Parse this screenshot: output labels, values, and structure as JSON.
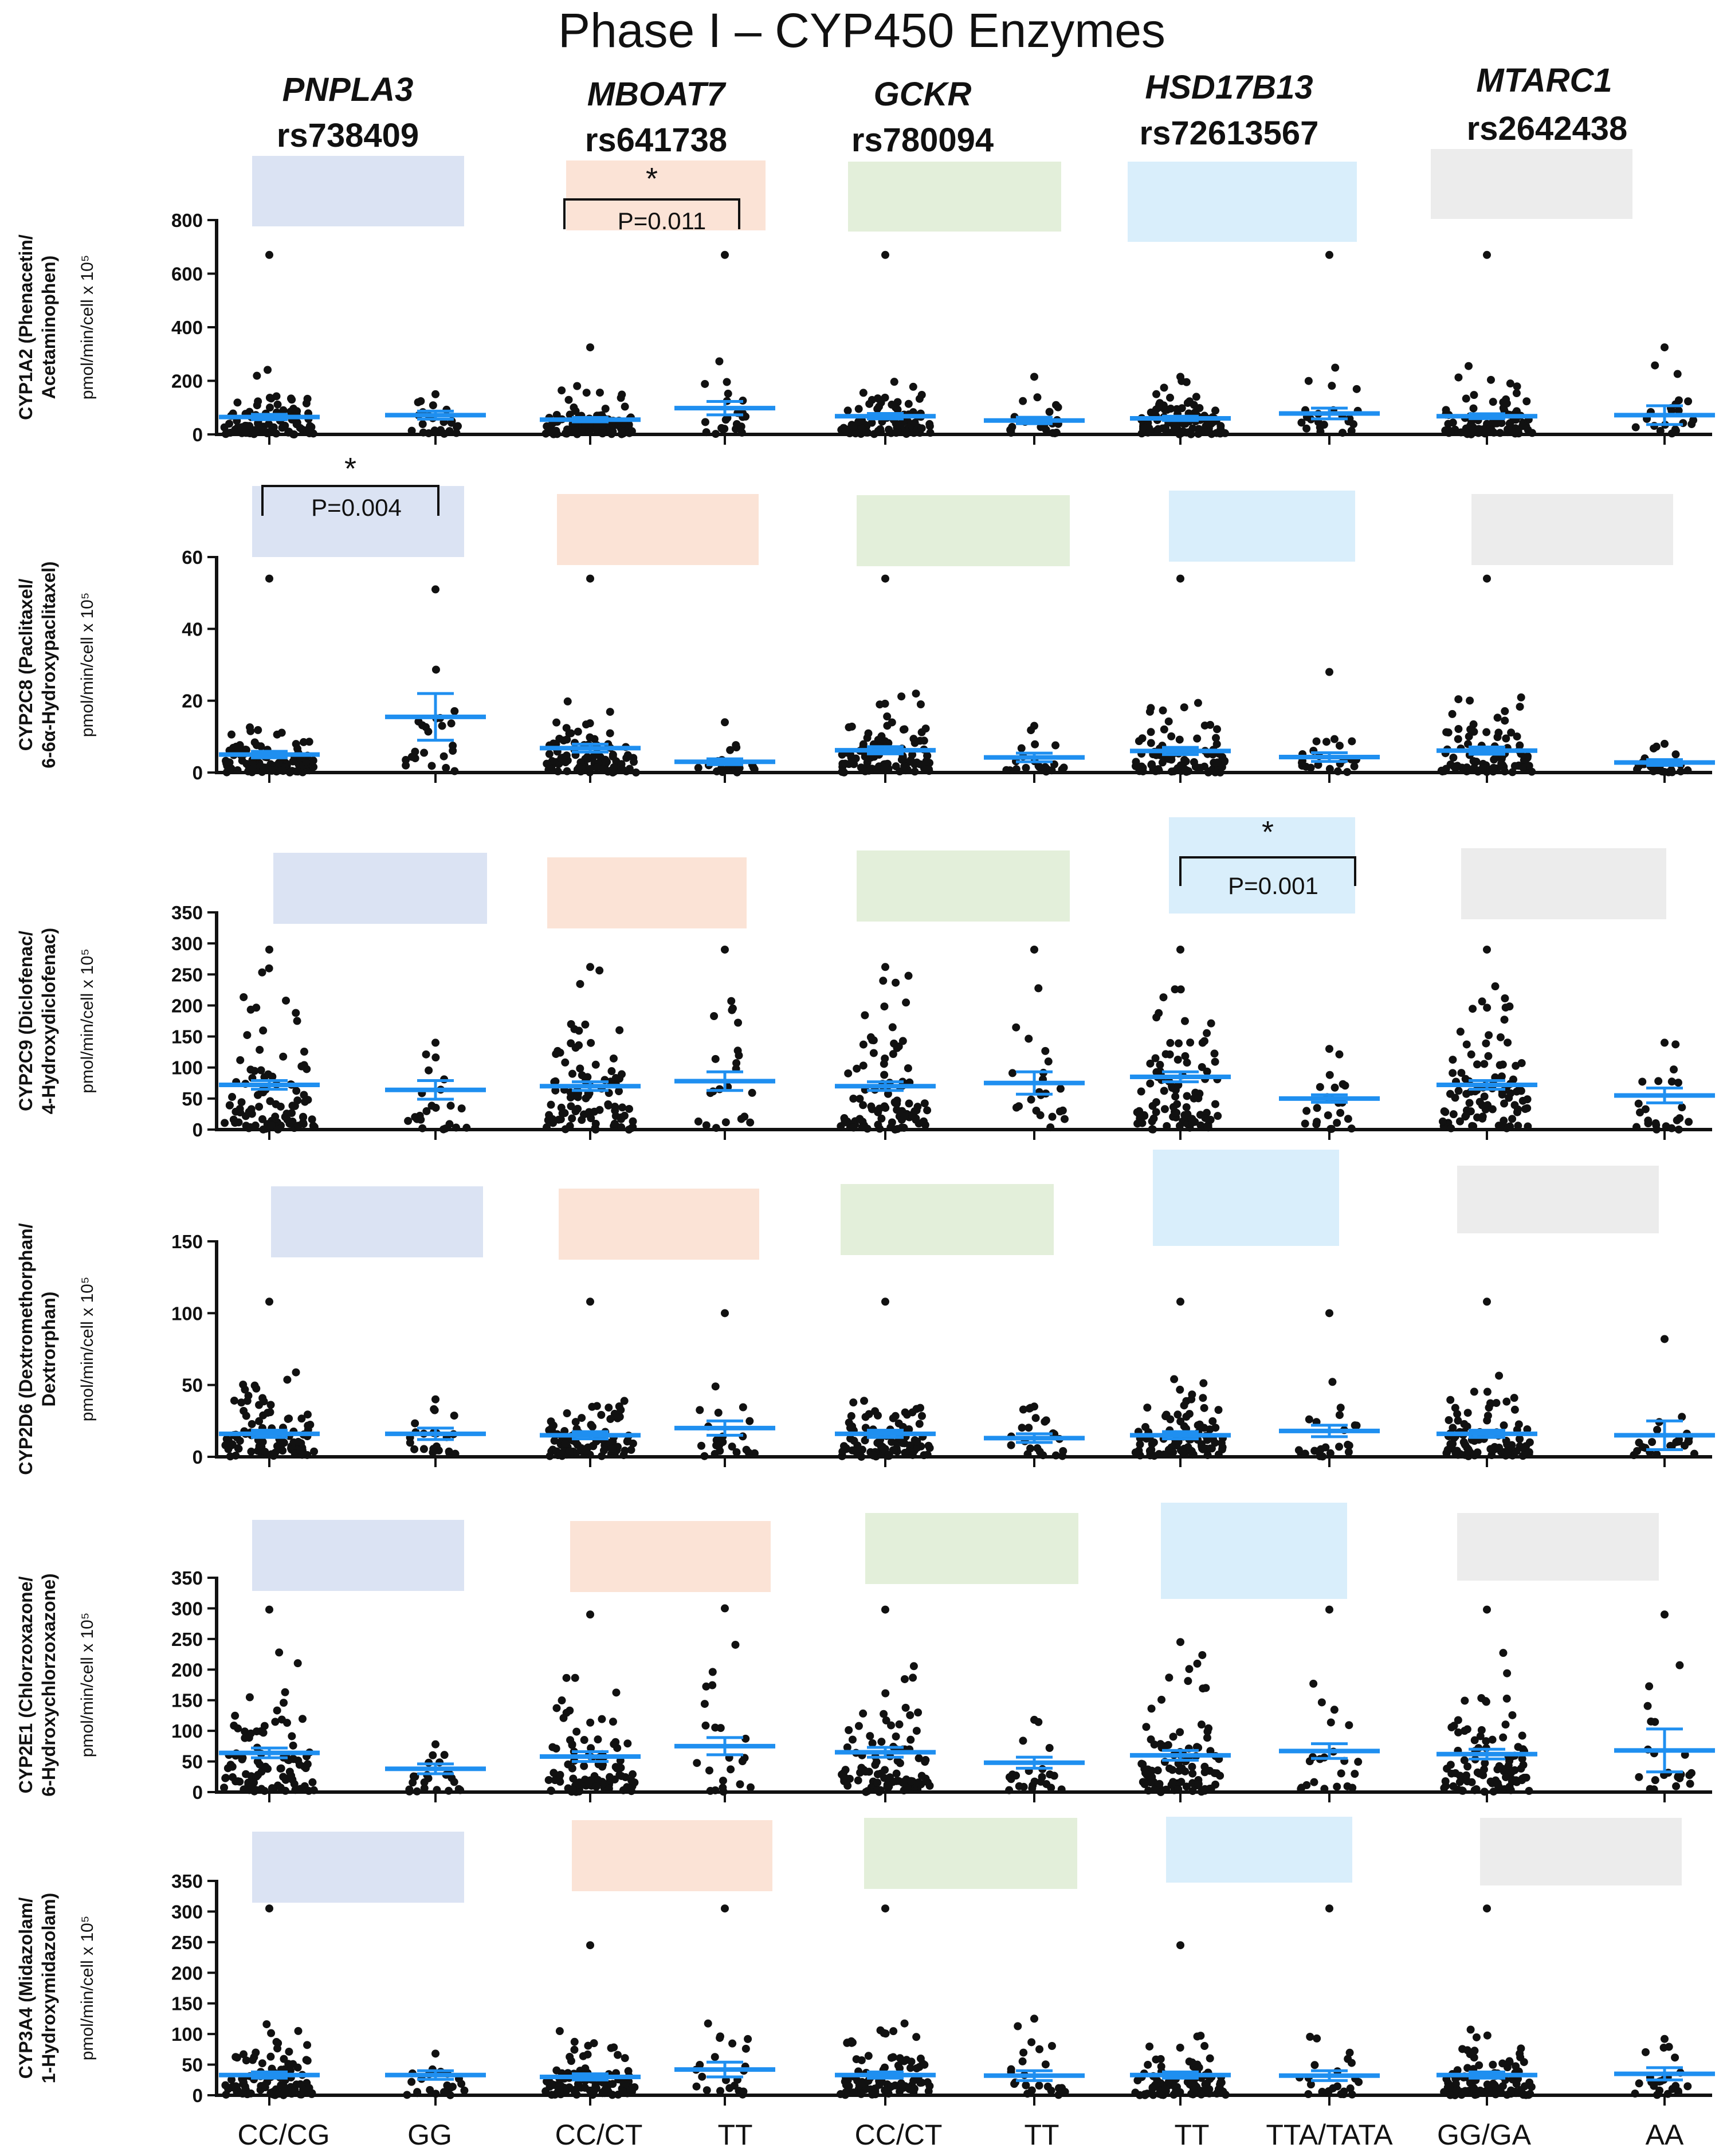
{
  "title": "Phase I – CYP450 Enzymes",
  "genes": [
    {
      "name": "PNPLA3",
      "snp": "rs738409",
      "color": "#dbe3f3"
    },
    {
      "name": "MBOAT7",
      "snp": "rs641738",
      "color": "#fbe3d6"
    },
    {
      "name": "GCKR",
      "snp": "rs780094",
      "color": "#e3efda"
    },
    {
      "name": "HSD17B13",
      "snp": "rs72613567",
      "color": "#d9eefb"
    },
    {
      "name": "MTARC1",
      "snp": "rs2642438",
      "color": "#ececec"
    }
  ],
  "x_categories": [
    "CC/CG",
    "GG",
    "CC/CT",
    "TT",
    "CC/CT",
    "TT",
    "TT",
    "TTA/TATA",
    "GG/GA",
    "AA"
  ],
  "unit_label": "pmol/min/cell x 10⁵",
  "mean_color": "#1f8ff0",
  "chart_data": [
    {
      "type": "scatter",
      "ylabel_lines": [
        "CYP1A2 (Phenacetin/",
        "Acetaminophen)"
      ],
      "ylim": [
        0,
        800
      ],
      "yticks": [
        0,
        200,
        400,
        600,
        800
      ],
      "groups": [
        {
          "max": 670,
          "mean": 65,
          "sem": 10
        },
        {
          "max": 150,
          "mean": 72,
          "sem": 15
        },
        {
          "max": 325,
          "mean": 55,
          "sem": 8
        },
        {
          "max": 670,
          "mean": 98,
          "sem": 25
        },
        {
          "max": 670,
          "mean": 68,
          "sem": 10
        },
        {
          "max": 215,
          "mean": 52,
          "sem": 12
        },
        {
          "max": 215,
          "mean": 60,
          "sem": 8
        },
        {
          "max": 670,
          "mean": 78,
          "sem": 20
        },
        {
          "max": 670,
          "mean": 68,
          "sem": 9
        },
        {
          "max": 325,
          "mean": 72,
          "sem": 35
        }
      ],
      "significance": {
        "from": 2,
        "to": 3,
        "p_label": "P=0.011",
        "star": "*"
      }
    },
    {
      "type": "scatter",
      "ylabel_lines": [
        "CYP2C8 (Paclitaxel/",
        "6-6α-Hydroxypaclitaxel)"
      ],
      "ylim": [
        0,
        60
      ],
      "yticks": [
        0,
        20,
        40,
        60
      ],
      "groups": [
        {
          "max": 54,
          "mean": 5,
          "sem": 0.9
        },
        {
          "max": 51,
          "mean": 15.5,
          "sem": 6.5
        },
        {
          "max": 54,
          "mean": 6.8,
          "sem": 1.1
        },
        {
          "max": 14,
          "mean": 3,
          "sem": 0.8
        },
        {
          "max": 54,
          "mean": 6.2,
          "sem": 1.0
        },
        {
          "max": 13,
          "mean": 4.2,
          "sem": 1.2
        },
        {
          "max": 54,
          "mean": 6.0,
          "sem": 1.0
        },
        {
          "max": 28,
          "mean": 4.3,
          "sem": 1.2
        },
        {
          "max": 54,
          "mean": 6.1,
          "sem": 1.0
        },
        {
          "max": 8,
          "mean": 2.8,
          "sem": 0.8
        }
      ],
      "significance": {
        "from": 0,
        "to": 1,
        "p_label": "P=0.004",
        "star": "*"
      }
    },
    {
      "type": "scatter",
      "ylabel_lines": [
        "CYP2C9 (Diclofenac/",
        "4-Hydroxydiclofenac)"
      ],
      "ylim": [
        0,
        350
      ],
      "yticks": [
        0,
        50,
        100,
        150,
        200,
        250,
        300,
        350
      ],
      "groups": [
        {
          "max": 290,
          "mean": 72,
          "sem": 7
        },
        {
          "max": 140,
          "mean": 64,
          "sem": 15
        },
        {
          "max": 262,
          "mean": 70,
          "sem": 7
        },
        {
          "max": 290,
          "mean": 78,
          "sem": 15
        },
        {
          "max": 262,
          "mean": 70,
          "sem": 7
        },
        {
          "max": 290,
          "mean": 75,
          "sem": 18
        },
        {
          "max": 290,
          "mean": 85,
          "sem": 8
        },
        {
          "max": 130,
          "mean": 50,
          "sem": 6
        },
        {
          "max": 290,
          "mean": 72,
          "sem": 7
        },
        {
          "max": 140,
          "mean": 55,
          "sem": 12
        }
      ],
      "significance": {
        "from": 6,
        "to": 7,
        "p_label": "P=0.001",
        "star": "*"
      }
    },
    {
      "type": "scatter",
      "ylabel_lines": [
        "CYP2D6 (Dextromethorphan/",
        "Dextrorphan)"
      ],
      "ylim": [
        0,
        150
      ],
      "yticks": [
        0,
        50,
        100,
        150
      ],
      "groups": [
        {
          "max": 108,
          "mean": 16,
          "sem": 2.5
        },
        {
          "max": 40,
          "mean": 16,
          "sem": 4
        },
        {
          "max": 108,
          "mean": 15,
          "sem": 2.5
        },
        {
          "max": 100,
          "mean": 20,
          "sem": 5
        },
        {
          "max": 108,
          "mean": 16,
          "sem": 2.5
        },
        {
          "max": 35,
          "mean": 13,
          "sem": 3
        },
        {
          "max": 108,
          "mean": 15,
          "sem": 2.5
        },
        {
          "max": 100,
          "mean": 18,
          "sem": 4
        },
        {
          "max": 108,
          "mean": 16,
          "sem": 2.5
        },
        {
          "max": 82,
          "mean": 15,
          "sem": 10
        }
      ]
    },
    {
      "type": "scatter",
      "ylabel_lines": [
        "CYP2E1 (Chlorzoxazone/",
        "6-Hydroxychlorzoxazone)"
      ],
      "ylim": [
        0,
        350
      ],
      "yticks": [
        0,
        50,
        100,
        150,
        200,
        250,
        300,
        350
      ],
      "groups": [
        {
          "max": 298,
          "mean": 64,
          "sem": 8
        },
        {
          "max": 78,
          "mean": 38,
          "sem": 8
        },
        {
          "max": 290,
          "mean": 58,
          "sem": 8
        },
        {
          "max": 300,
          "mean": 75,
          "sem": 14
        },
        {
          "max": 298,
          "mean": 65,
          "sem": 8
        },
        {
          "max": 118,
          "mean": 48,
          "sem": 9
        },
        {
          "max": 245,
          "mean": 60,
          "sem": 8
        },
        {
          "max": 298,
          "mean": 67,
          "sem": 12
        },
        {
          "max": 298,
          "mean": 62,
          "sem": 8
        },
        {
          "max": 290,
          "mean": 68,
          "sem": 35
        }
      ]
    },
    {
      "type": "scatter",
      "ylabel_lines": [
        "CYP3A4 (Midazolam/",
        "1-Hydroxymidazolam)"
      ],
      "ylim": [
        0,
        350
      ],
      "yticks": [
        0,
        50,
        100,
        150,
        200,
        250,
        300,
        350
      ],
      "groups": [
        {
          "max": 305,
          "mean": 33,
          "sem": 5
        },
        {
          "max": 68,
          "mean": 33,
          "sem": 7
        },
        {
          "max": 245,
          "mean": 30,
          "sem": 5
        },
        {
          "max": 305,
          "mean": 42,
          "sem": 12
        },
        {
          "max": 305,
          "mean": 33,
          "sem": 5
        },
        {
          "max": 125,
          "mean": 32,
          "sem": 8
        },
        {
          "max": 245,
          "mean": 33,
          "sem": 5
        },
        {
          "max": 305,
          "mean": 32,
          "sem": 8
        },
        {
          "max": 305,
          "mean": 33,
          "sem": 5
        },
        {
          "max": 92,
          "mean": 35,
          "sem": 10
        }
      ]
    }
  ]
}
